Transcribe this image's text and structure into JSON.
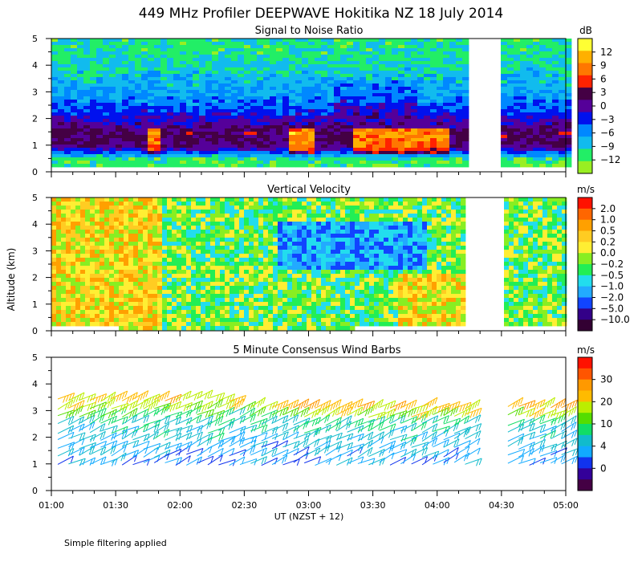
{
  "title": "449 MHz Profiler DEEPWAVE Hokitika NZ 18 July 2014",
  "footnote": "Simple filtering applied",
  "chart_data": [
    {
      "type": "heatmap",
      "title": "Signal to Noise Ratio",
      "ylabel": "",
      "ylim": [
        0,
        5
      ],
      "y_ticks": [
        "0",
        "1",
        "2",
        "3",
        "4",
        "5"
      ],
      "colorbar_unit": "dB",
      "colorbar_labels": [
        "12",
        "9",
        "6",
        "3",
        "0",
        "−3",
        "−6",
        "−9",
        "−12"
      ],
      "colorbar_colors": [
        "#ffff33",
        "#ffb000",
        "#ff7700",
        "#ff2200",
        "#440044",
        "#550099",
        "#0011ee",
        "#0088ff",
        "#11bbee",
        "#22ee66",
        "#99ee22"
      ],
      "data_gap_ut": [
        "04:16",
        "04:29"
      ],
      "profile_km": [
        0.5,
        1.0,
        1.5,
        2.0,
        2.5,
        3.0,
        3.5,
        4.0,
        4.5,
        5.0
      ],
      "profile_db": [
        -10,
        1,
        2,
        -1,
        -4,
        -6,
        -7,
        -8,
        -9,
        -9
      ]
    },
    {
      "type": "heatmap",
      "title": "Vertical Velocity",
      "ylabel": "Altitude (km)",
      "ylim": [
        0,
        5
      ],
      "y_ticks": [
        "0",
        "1",
        "2",
        "3",
        "4",
        "5"
      ],
      "colorbar_unit": "m/s",
      "colorbar_labels": [
        "2.0",
        "1.0",
        "0.5",
        "0.2",
        "0.0",
        "−0.2",
        "−0.5",
        "−1.0",
        "−2.0",
        "−5.0",
        "−10.0"
      ],
      "colorbar_colors": [
        "#ff1100",
        "#ff6600",
        "#ffa000",
        "#ffcc22",
        "#ffee33",
        "#88ee22",
        "#22ee55",
        "#22ddee",
        "#22aaff",
        "#1144ff",
        "#330088",
        "#330033"
      ],
      "data_gap_ut": [
        "04:16",
        "04:29"
      ]
    },
    {
      "type": "scatter",
      "title": "5 Minute Consensus Wind Barbs",
      "xlabel": "UT  (NZST + 12)",
      "ylim": [
        0,
        5
      ],
      "y_ticks": [
        "0",
        "1",
        "2",
        "3",
        "4",
        "5"
      ],
      "x_ticks": [
        "01:00",
        "01:30",
        "02:00",
        "02:30",
        "03:00",
        "03:30",
        "04:00",
        "04:30",
        "05:00"
      ],
      "colorbar_unit": "m/s",
      "colorbar_labels": [
        "30",
        "20",
        "10",
        "4",
        "0"
      ],
      "colorbar_colors": [
        "#ff1100",
        "#ff5500",
        "#ff9900",
        "#ffbb00",
        "#bbee00",
        "#55dd00",
        "#11dd66",
        "#11bbcc",
        "#11aaff",
        "#1133ee",
        "#330099",
        "#440044"
      ],
      "barb_levels_km": [
        1.0,
        1.3,
        1.6,
        1.9,
        2.2,
        2.5,
        2.8,
        3.1,
        3.4
      ],
      "barb_speed_ms": [
        8,
        9,
        10,
        11,
        12,
        13,
        16,
        20,
        22
      ]
    }
  ]
}
